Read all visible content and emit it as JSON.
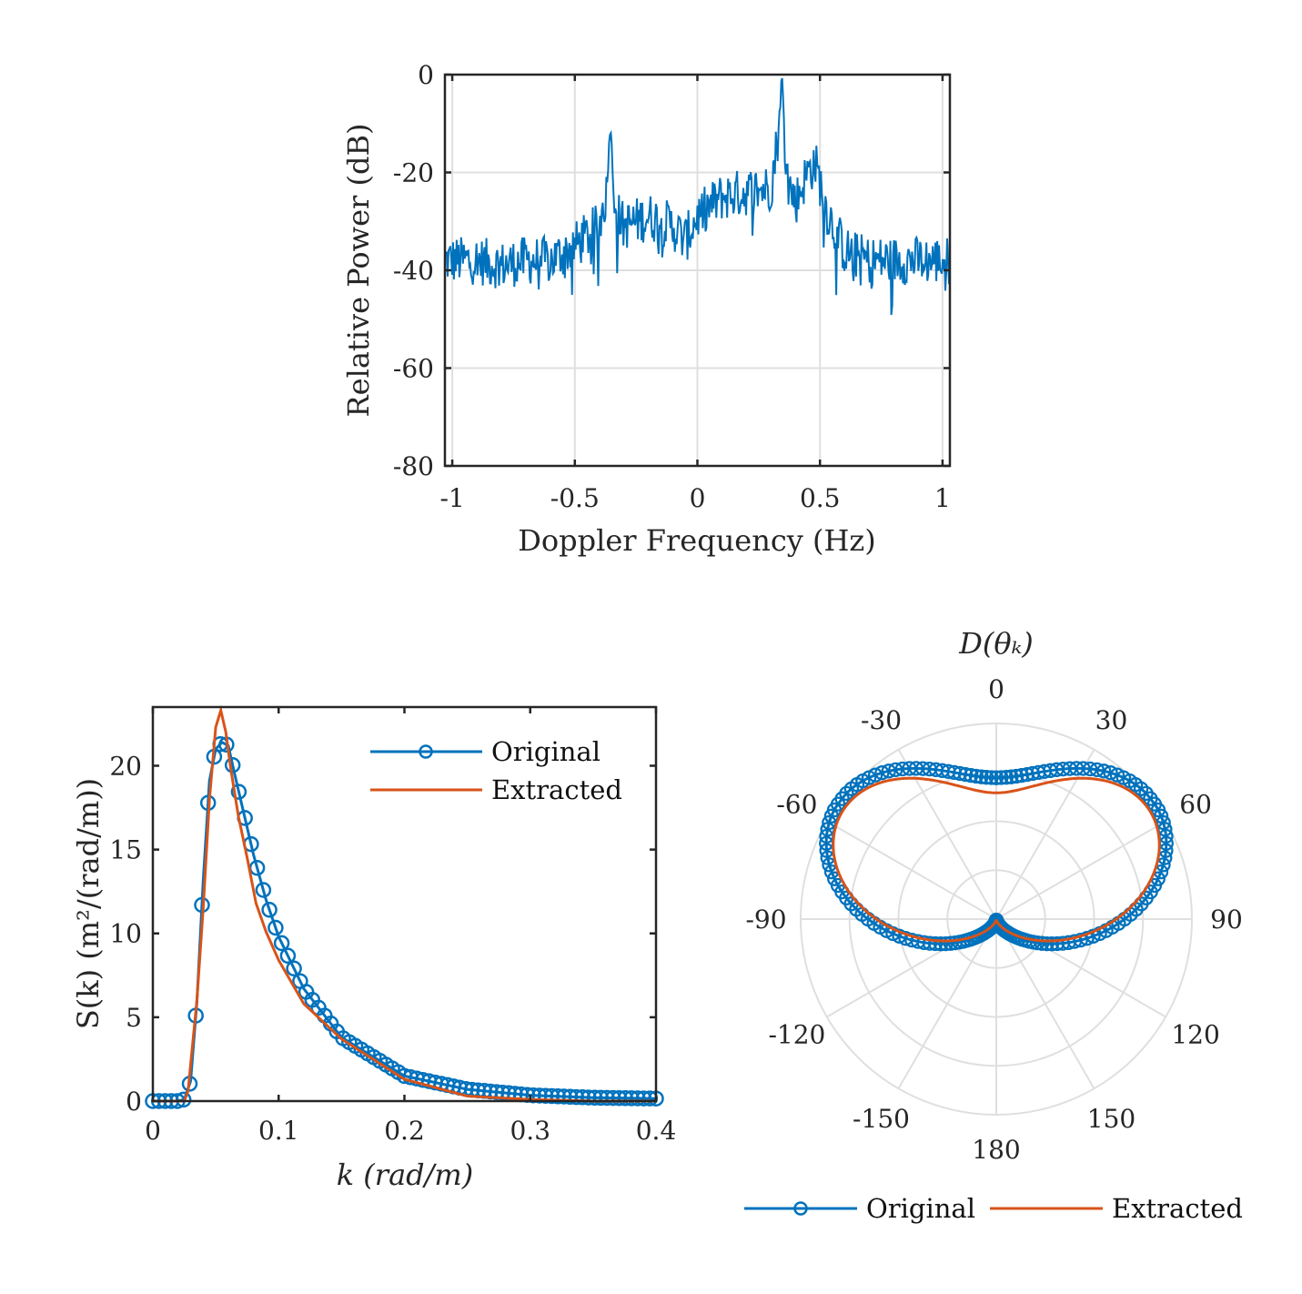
{
  "colors": {
    "blue": "#0072BD",
    "orange": "#D95319",
    "grid": "#DFDFDF",
    "axis": "#262626"
  },
  "chart_data": [
    {
      "type": "line",
      "name": "doppler-spectrum",
      "xlabel": "Doppler Frequency (Hz)",
      "ylabel": "Relative Power (dB)",
      "xlim": [
        -1.03,
        1.03
      ],
      "ylim": [
        -80,
        0
      ],
      "xticks": [
        -1,
        -0.5,
        0,
        0.5,
        1
      ],
      "xtick_labels": [
        "-1",
        "-0.5",
        "0",
        "0.5",
        "1"
      ],
      "yticks": [
        -80,
        -60,
        -40,
        -20,
        0
      ],
      "ytick_labels": [
        "-80",
        "-60",
        "-40",
        "-20",
        "0"
      ],
      "grid": true,
      "series": [
        {
          "color": "#0072BD",
          "x": [
            -1.03,
            -0.9,
            -0.8,
            -0.7,
            -0.6,
            -0.5,
            -0.45,
            -0.4,
            -0.37,
            -0.355,
            -0.345,
            -0.33,
            -0.3,
            -0.2,
            -0.1,
            -0.05,
            0,
            0.1,
            0.2,
            0.3,
            0.33,
            0.345,
            0.355,
            0.37,
            0.4,
            0.45,
            0.48,
            0.5,
            0.53,
            0.6,
            0.7,
            0.8,
            0.9,
            1.03
          ],
          "y": [
            -38,
            -38,
            -39,
            -38,
            -38,
            -35,
            -33,
            -31,
            -24,
            -9,
            -20,
            -28,
            -31,
            -29,
            -31,
            -34,
            -29,
            -25,
            -24,
            -23,
            -12,
            0,
            -12,
            -22,
            -26,
            -20,
            -18,
            -22,
            -28,
            -36,
            -38,
            -38,
            -38,
            -38
          ]
        }
      ]
    },
    {
      "type": "line",
      "name": "wavenumber-spectrum",
      "xlabel": "k (rad/m)",
      "ylabel": "S(k) (m²/(rad/m))",
      "xlim": [
        0,
        0.4
      ],
      "ylim": [
        0,
        23.5
      ],
      "xticks": [
        0,
        0.1,
        0.2,
        0.3,
        0.4
      ],
      "xtick_labels": [
        "0",
        "0.1",
        "0.2",
        "0.3",
        "0.4"
      ],
      "yticks": [
        0,
        5,
        10,
        15,
        20
      ],
      "ytick_labels": [
        "0",
        "5",
        "10",
        "15",
        "20"
      ],
      "grid": false,
      "legend": "top-right",
      "series": [
        {
          "name": "Original",
          "color": "#0072BD",
          "marker": "circle",
          "x": [
            0,
            0.02,
            0.025,
            0.03,
            0.035,
            0.04,
            0.045,
            0.05,
            0.055,
            0.06,
            0.065,
            0.07,
            0.08,
            0.09,
            0.1,
            0.12,
            0.15,
            0.2,
            0.25,
            0.3,
            0.35,
            0.4
          ],
          "y": [
            0,
            0,
            0.1,
            1.2,
            5.9,
            13.1,
            19.1,
            21.0,
            21.4,
            21.2,
            19.5,
            17.9,
            14.7,
            12.0,
            9.8,
            6.7,
            3.8,
            1.5,
            0.7,
            0.35,
            0.2,
            0.15
          ]
        },
        {
          "name": "Extracted",
          "color": "#D95319",
          "x": [
            0,
            0.025,
            0.028,
            0.035,
            0.04,
            0.045,
            0.05,
            0.054,
            0.058,
            0.062,
            0.068,
            0.075,
            0.082,
            0.09,
            0.1,
            0.12,
            0.15,
            0.2,
            0.25,
            0.3,
            0.35,
            0.4
          ],
          "y": [
            0,
            0,
            0.6,
            6.0,
            11.5,
            18.0,
            22.3,
            23.3,
            22.0,
            19.8,
            17.0,
            14.5,
            11.8,
            10.1,
            8.4,
            5.8,
            3.7,
            1.3,
            0.3,
            0.1,
            0.0,
            0.0
          ]
        }
      ]
    },
    {
      "type": "polar",
      "name": "directional-distribution",
      "title": "D(θₖ)",
      "angle_labels": [
        "0",
        "30",
        "60",
        "90",
        "120",
        "150",
        "180",
        "-150",
        "-120",
        "-90",
        "-60",
        "-30"
      ],
      "angle_values": [
        0,
        30,
        60,
        90,
        120,
        150,
        180,
        -150,
        -120,
        -90,
        -60,
        -30
      ],
      "rlim": [
        0,
        1
      ],
      "legend": "bottom",
      "series": [
        {
          "name": "Original",
          "color": "#0072BD",
          "marker": "circle",
          "lobe_center_deg": 55,
          "peak": 1.0,
          "width_deg": 55
        },
        {
          "name": "Extracted",
          "color": "#D95319",
          "lobe_center_deg": 55,
          "peak": 0.96,
          "width_deg": 53
        }
      ]
    }
  ]
}
